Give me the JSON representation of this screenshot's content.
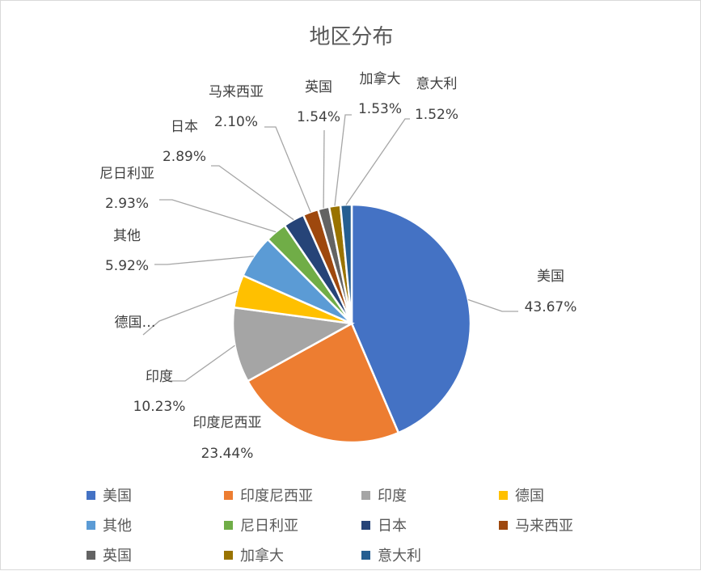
{
  "chart_data": {
    "type": "pie",
    "title": "地区分布",
    "slices": [
      {
        "name": "美国",
        "value": 43.67,
        "label": "43.67%",
        "color": "#4472C4"
      },
      {
        "name": "印度尼西亚",
        "value": 23.44,
        "label": "23.44%",
        "color": "#ED7D31"
      },
      {
        "name": "印度",
        "value": 10.23,
        "label": "10.23%",
        "color": "#A5A5A5"
      },
      {
        "name": "德国",
        "value": 4.47,
        "label": "德国…",
        "color": "#FFC000"
      },
      {
        "name": "其他",
        "value": 5.92,
        "label": "5.92%",
        "color": "#5B9BD5"
      },
      {
        "name": "尼日利亚",
        "value": 2.93,
        "label": "2.93%",
        "color": "#70AD47"
      },
      {
        "name": "日本",
        "value": 2.89,
        "label": "2.89%",
        "color": "#264478"
      },
      {
        "name": "马来西亚",
        "value": 2.1,
        "label": "2.10%",
        "color": "#9E480E"
      },
      {
        "name": "英国",
        "value": 1.54,
        "label": "1.54%",
        "color": "#636363"
      },
      {
        "name": "加拿大",
        "value": 1.53,
        "label": "1.53%",
        "color": "#997300"
      },
      {
        "name": "意大利",
        "value": 1.52,
        "label": "1.52%",
        "color": "#255E91"
      }
    ],
    "legend_position": "bottom"
  }
}
